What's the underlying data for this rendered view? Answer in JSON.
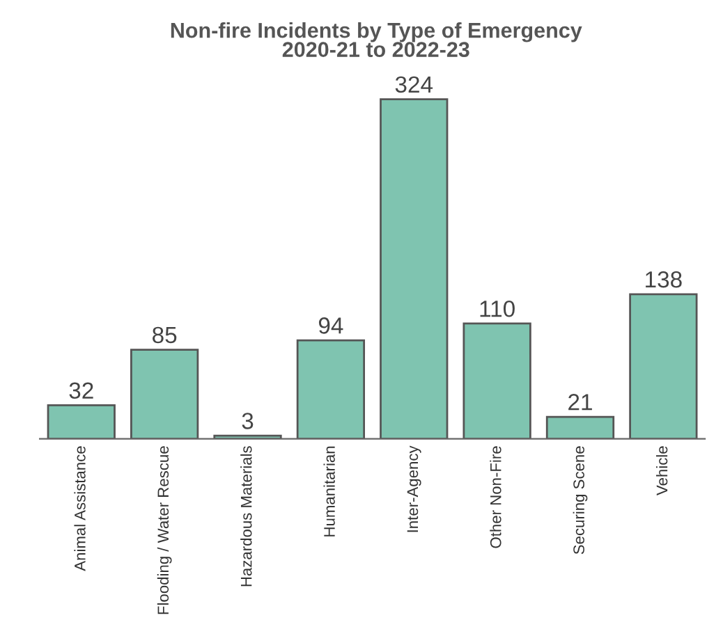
{
  "chart_data": {
    "type": "bar",
    "title": "Non-fire Incidents by Type of Emergency\n2020-21 to 2022-23",
    "categories": [
      "Animal Assistance",
      "Flooding / Water Rescue",
      "Hazardous Materials",
      "Humanitarian",
      "Inter-Agency",
      "Other Non-Fire",
      "Securing Scene",
      "Vehicle"
    ],
    "values": [
      32,
      85,
      3,
      94,
      324,
      110,
      21,
      138
    ],
    "color": "#7fc4b0",
    "data_labels": true,
    "grid": false,
    "legend": false
  }
}
